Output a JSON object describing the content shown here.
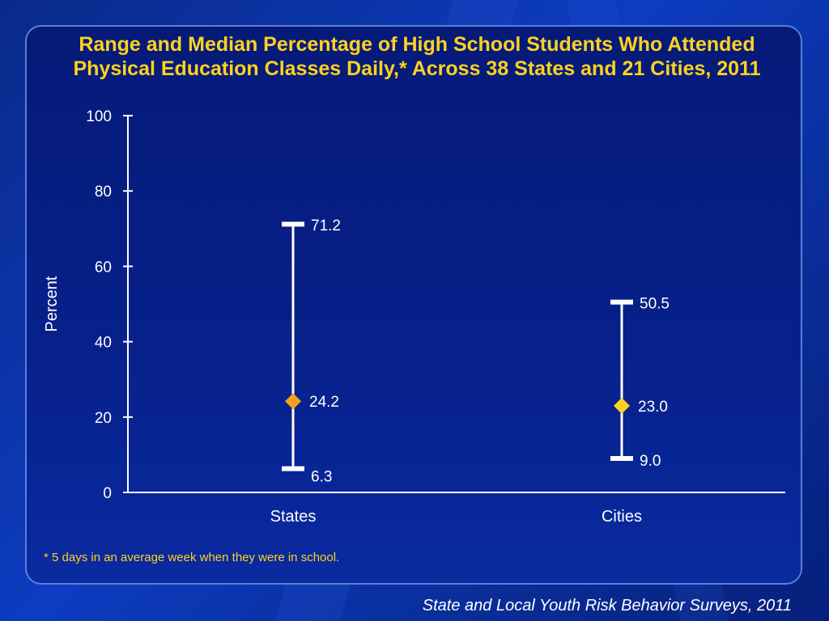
{
  "slide": {
    "footnote": "* 5 days in an average week when they were in school.",
    "source": "State and Local Youth Risk Behavior Surveys, 2011"
  },
  "colors": {
    "title": "#ffd21f",
    "axis": "#ffffff",
    "median_marker_states": "#f5a01a",
    "median_marker_cities": "#ffd21f"
  },
  "chart_data": {
    "type": "range-median",
    "title": "Range and Median Percentage of High School Students Who Attended Physical Education Classes Daily,* Across 38 States and 21 Cities, 2011",
    "xlabel": "",
    "ylabel": "Percent",
    "ylim": [
      0,
      100
    ],
    "yticks": [
      0,
      20,
      40,
      60,
      80,
      100
    ],
    "grid": false,
    "categories": [
      "States",
      "Cities"
    ],
    "series": [
      {
        "category": "States",
        "min": 6.3,
        "median": 24.2,
        "max": 71.2,
        "labels": {
          "min": "6.3",
          "median": "24.2",
          "max": "71.2"
        }
      },
      {
        "category": "Cities",
        "min": 9.0,
        "median": 23.0,
        "max": 50.5,
        "labels": {
          "min": "9.0",
          "median": "23.0",
          "max": "50.5"
        }
      }
    ]
  }
}
